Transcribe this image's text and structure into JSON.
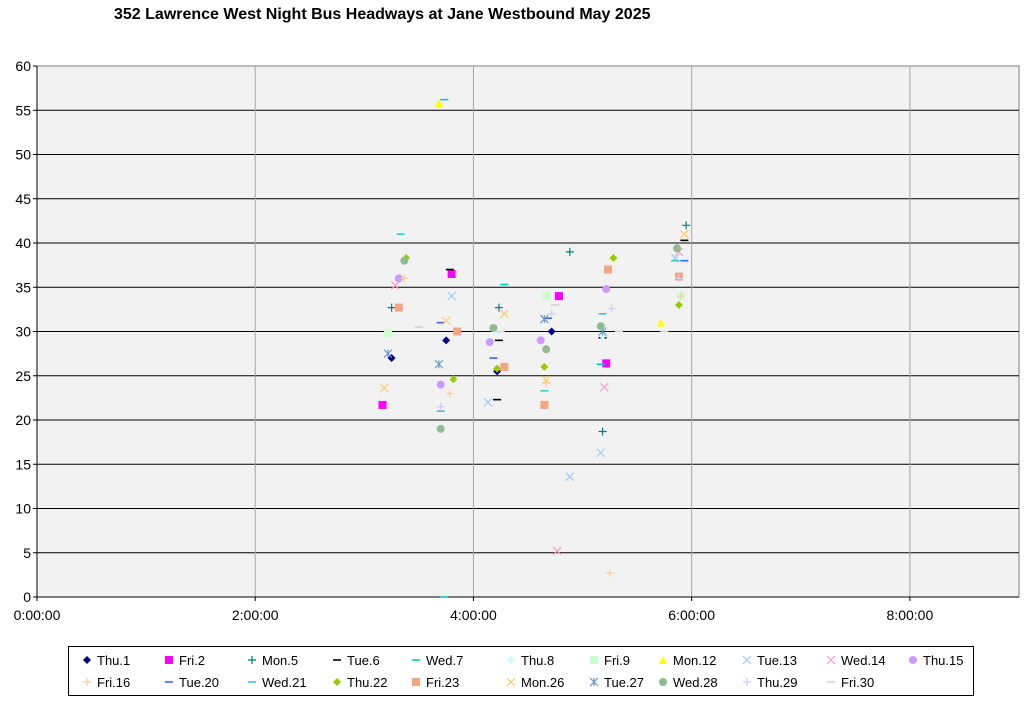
{
  "chart_data": {
    "type": "scatter",
    "title": "352 Lawrence West Night Bus Headways at Jane Westbound May 2025",
    "xlabel": "",
    "ylabel": "",
    "xlim": [
      "0:00:00",
      "9:00:00"
    ],
    "ylim": [
      0,
      60
    ],
    "x_ticks": [
      "0:00:00",
      "2:00:00",
      "4:00:00",
      "6:00:00",
      "8:00:00"
    ],
    "y_ticks": [
      0,
      5,
      10,
      15,
      20,
      25,
      30,
      35,
      40,
      45,
      50,
      55,
      60
    ],
    "grid": true,
    "legend_position": "bottom",
    "series": [
      {
        "name": "Thu.1",
        "color": "#000080",
        "marker": "diamond",
        "points": [
          [
            "3:15:00",
            27
          ],
          [
            "3:45:00",
            29
          ],
          [
            "4:13:00",
            25.5
          ],
          [
            "4:43:00",
            30
          ]
        ]
      },
      {
        "name": "Fri.2",
        "color": "#ff00ff",
        "marker": "square",
        "points": [
          [
            "3:10:00",
            21.7
          ],
          [
            "3:48:00",
            36.5
          ],
          [
            "4:47:00",
            34
          ],
          [
            "5:13:00",
            26.4
          ]
        ]
      },
      {
        "name": "Mon.5",
        "color": "#008080",
        "marker": "plus",
        "points": [
          [
            "3:15:00",
            32.7
          ],
          [
            "4:14:00",
            32.7
          ],
          [
            "4:53:00",
            39
          ],
          [
            "5:11:00",
            18.7
          ],
          [
            "5:57:00",
            42
          ]
        ]
      },
      {
        "name": "Tue.6",
        "color": "#000000",
        "marker": "dash",
        "points": [
          [
            "3:47:00",
            37
          ],
          [
            "4:13:00",
            22.3
          ],
          [
            "4:14:00",
            29
          ],
          [
            "5:11:00",
            29.3
          ],
          [
            "5:56:00",
            40.3
          ]
        ]
      },
      {
        "name": "Wed.7",
        "color": "#00cccc",
        "marker": "dash",
        "points": [
          [
            "3:44:00",
            0
          ],
          [
            "3:44:00",
            56.2
          ],
          [
            "4:17:00",
            35.3
          ],
          [
            "5:10:00",
            26.3
          ]
        ]
      },
      {
        "name": "Thu.8",
        "color": "#ccffff",
        "marker": "diamond",
        "points": [
          [
            "3:21:00",
            41
          ],
          [
            "4:12:00",
            30
          ],
          [
            "5:11:00",
            29.5
          ]
        ]
      },
      {
        "name": "Fri.9",
        "color": "#ccffcc",
        "marker": "square",
        "points": [
          [
            "3:13:00",
            29.8
          ],
          [
            "4:40:00",
            34
          ],
          [
            "5:54:00",
            34
          ]
        ]
      },
      {
        "name": "Mon.12",
        "color": "#ffff00",
        "marker": "triangle",
        "points": [
          [
            "3:41:00",
            55.8
          ],
          [
            "5:43:00",
            31
          ]
        ]
      },
      {
        "name": "Tue.13",
        "color": "#99ccff",
        "marker": "x",
        "points": [
          [
            "3:48:00",
            34
          ],
          [
            "4:08:00",
            22
          ],
          [
            "4:53:00",
            13.6
          ],
          [
            "5:10:00",
            16.3
          ],
          [
            "5:51:00",
            38.3
          ]
        ]
      },
      {
        "name": "Wed.14",
        "color": "#ff99cc",
        "marker": "x",
        "points": [
          [
            "3:17:00",
            35.2
          ],
          [
            "4:46:00",
            5.2
          ],
          [
            "5:12:00",
            23.7
          ],
          [
            "5:53:00",
            39
          ]
        ]
      },
      {
        "name": "Thu.15",
        "color": "#cc99ff",
        "marker": "circle",
        "points": [
          [
            "3:19:00",
            36
          ],
          [
            "3:42:00",
            24
          ],
          [
            "4:09:00",
            28.8
          ],
          [
            "4:37:00",
            29
          ],
          [
            "5:13:00",
            34.8
          ]
        ]
      },
      {
        "name": "Fri.16",
        "color": "#ffcc99",
        "marker": "plus",
        "points": [
          [
            "3:22:00",
            36
          ],
          [
            "3:47:00",
            23
          ],
          [
            "4:40:00",
            24.2
          ],
          [
            "5:15:00",
            2.7
          ],
          [
            "5:54:00",
            34
          ]
        ]
      },
      {
        "name": "Tue.20",
        "color": "#3366ff",
        "marker": "dash",
        "points": [
          [
            "3:42:00",
            31
          ],
          [
            "4:11:00",
            27
          ],
          [
            "4:41:00",
            31.5
          ],
          [
            "5:56:00",
            38
          ]
        ]
      },
      {
        "name": "Wed.21",
        "color": "#33cccc",
        "marker": "dash",
        "points": [
          [
            "3:20:00",
            41
          ],
          [
            "3:42:00",
            21
          ],
          [
            "4:39:00",
            23.3
          ],
          [
            "5:11:00",
            32
          ],
          [
            "5:51:00",
            38
          ]
        ]
      },
      {
        "name": "Thu.22",
        "color": "#99cc00",
        "marker": "diamond",
        "points": [
          [
            "3:23:00",
            38.3
          ],
          [
            "3:49:00",
            24.6
          ],
          [
            "4:13:00",
            25.8
          ],
          [
            "4:39:00",
            26
          ],
          [
            "5:17:00",
            38.3
          ],
          [
            "5:53:00",
            33
          ]
        ]
      },
      {
        "name": "Fri.23",
        "color": "#f4a582",
        "marker": "square",
        "points": [
          [
            "3:19:00",
            32.7
          ],
          [
            "3:51:00",
            30
          ],
          [
            "4:17:00",
            26
          ],
          [
            "4:39:00",
            21.7
          ],
          [
            "5:14:00",
            37
          ],
          [
            "5:53:00",
            36.2
          ]
        ]
      },
      {
        "name": "Mon.26",
        "color": "#ffcc66",
        "marker": "x",
        "points": [
          [
            "3:11:00",
            23.6
          ],
          [
            "3:45:00",
            31.2
          ],
          [
            "4:17:00",
            32
          ],
          [
            "4:40:00",
            24.5
          ],
          [
            "5:56:00",
            41
          ]
        ]
      },
      {
        "name": "Tue.27",
        "color": "#6699cc",
        "marker": "asterisk",
        "points": [
          [
            "3:13:00",
            27.5
          ],
          [
            "3:41:00",
            26.3
          ],
          [
            "4:39:00",
            31.4
          ],
          [
            "5:11:00",
            30
          ]
        ]
      },
      {
        "name": "Wed.28",
        "color": "#8fbc8f",
        "marker": "circle",
        "points": [
          [
            "3:22:00",
            38
          ],
          [
            "3:42:00",
            19
          ],
          [
            "4:11:00",
            30.4
          ],
          [
            "4:40:00",
            28
          ],
          [
            "5:10:00",
            30.6
          ],
          [
            "5:52:00",
            39.4
          ]
        ]
      },
      {
        "name": "Thu.29",
        "color": "#ccccff",
        "marker": "plus",
        "points": [
          [
            "3:42:00",
            21.5
          ],
          [
            "4:43:00",
            32
          ],
          [
            "5:16:00",
            32.6
          ],
          [
            "5:53:00",
            36
          ]
        ]
      },
      {
        "name": "Fri.30",
        "color": "#d3d3d3",
        "marker": "dash",
        "points": [
          [
            "3:30:00",
            30.5
          ],
          [
            "4:15:00",
            30
          ],
          [
            "4:45:00",
            33
          ],
          [
            "5:20:00",
            30
          ],
          [
            "5:45:00",
            30
          ]
        ]
      }
    ]
  }
}
